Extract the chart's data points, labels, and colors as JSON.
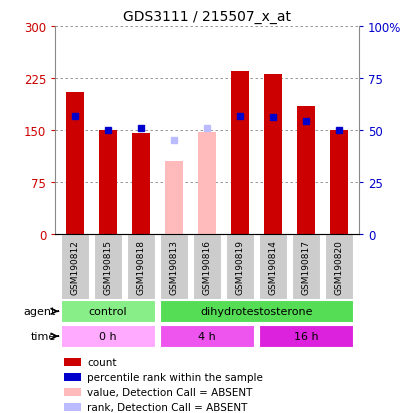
{
  "title": "GDS3111 / 215507_x_at",
  "samples": [
    "GSM190812",
    "GSM190815",
    "GSM190818",
    "GSM190813",
    "GSM190816",
    "GSM190819",
    "GSM190814",
    "GSM190817",
    "GSM190820"
  ],
  "count_values": [
    205,
    150,
    145,
    null,
    null,
    235,
    230,
    185,
    150
  ],
  "rank_values": [
    170,
    150,
    153,
    null,
    null,
    170,
    168,
    163,
    150
  ],
  "absent_count": [
    null,
    null,
    null,
    105,
    147,
    null,
    null,
    null,
    null
  ],
  "absent_rank": [
    null,
    null,
    null,
    135,
    152,
    null,
    null,
    null,
    null
  ],
  "count_color": "#cc0000",
  "rank_color": "#0000cc",
  "absent_count_color": "#ffbbbb",
  "absent_rank_color": "#bbbbff",
  "ylim_left": [
    0,
    300
  ],
  "ylim_right": [
    0,
    100
  ],
  "yticks_left": [
    0,
    75,
    150,
    225,
    300
  ],
  "ytick_labels_left": [
    "0",
    "75",
    "150",
    "225",
    "300"
  ],
  "yticks_right": [
    0,
    25,
    50,
    75,
    100
  ],
  "ytick_labels_right": [
    "0",
    "25",
    "50",
    "75",
    "100%"
  ],
  "agent_color_control": "#88ee88",
  "agent_color_dhtest": "#55dd55",
  "time_color_0h": "#ffaaff",
  "time_color_4h": "#ee55ee",
  "time_color_16h": "#dd22dd",
  "legend_items": [
    {
      "color": "#cc0000",
      "label": "count"
    },
    {
      "color": "#0000cc",
      "label": "percentile rank within the sample"
    },
    {
      "color": "#ffbbbb",
      "label": "value, Detection Call = ABSENT"
    },
    {
      "color": "#bbbbff",
      "label": "rank, Detection Call = ABSENT"
    }
  ],
  "grid_color": "#888888",
  "bg_color": "#ffffff",
  "axis_color_left": "#cc0000",
  "axis_color_right": "#0000cc"
}
